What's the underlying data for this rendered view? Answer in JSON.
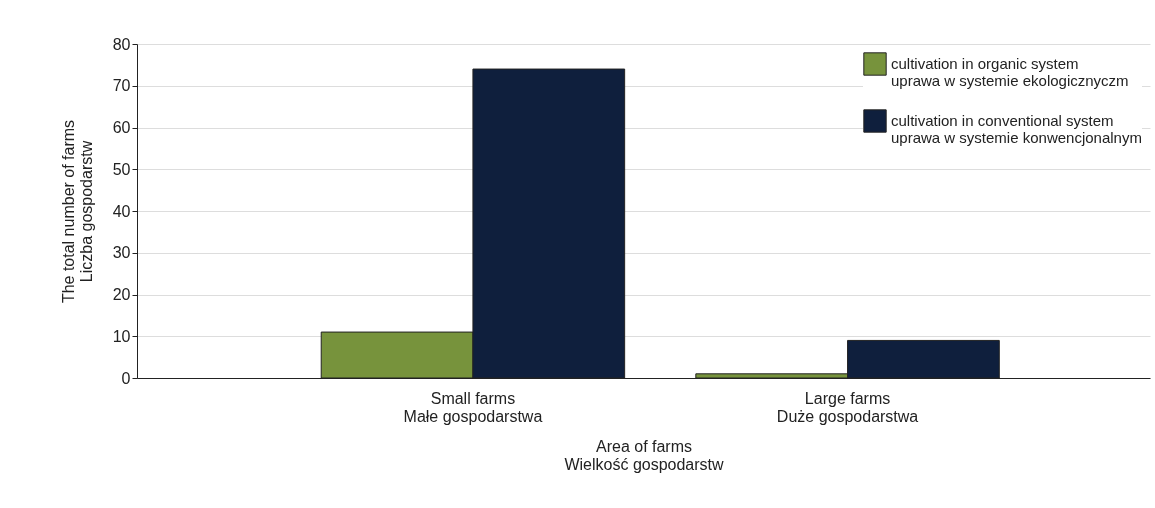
{
  "chart_data": {
    "type": "bar",
    "xlabel": "Area of farms\nWielkość gospodarstw",
    "ylabel": "The total number of farms\nLiczba gospodarstw",
    "categories": [
      "Small farms\nMałe gospodarstwa",
      "Large farms\nDuże gospodarstwa"
    ],
    "series": [
      {
        "name": "cultivation in organic system\nuprawa w systemie ekologicznyczm",
        "color": "#77933c",
        "values": [
          11,
          1
        ]
      },
      {
        "name": "cultivation in conventional  system\nuprawa w systemie konwencjonalnym",
        "color": "#0f1f3d",
        "values": [
          74,
          9
        ]
      }
    ],
    "ylim": [
      0,
      80
    ],
    "yticks": [
      0,
      10,
      20,
      30,
      40,
      50,
      60,
      70,
      80
    ],
    "grid": "y",
    "legend": "top right"
  }
}
